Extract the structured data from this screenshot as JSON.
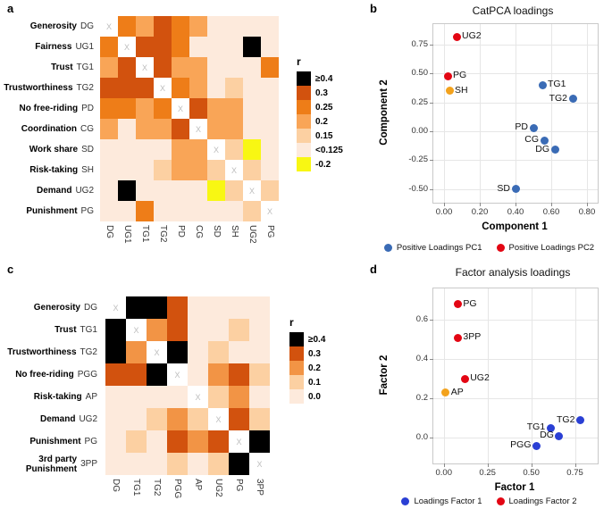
{
  "chart_data": [
    {
      "id": "a",
      "panel_label": "a",
      "type": "heatmap",
      "diagonal_marker": "X",
      "legend_title": "r",
      "row_titles": [
        "Generosity",
        "Fairness",
        "Trust",
        "Trustworthiness",
        "No free-riding",
        "Coordination",
        "Work share",
        "Risk-taking",
        "Demand",
        "Punishment"
      ],
      "categories": [
        "DG",
        "UG1",
        "TG1",
        "TG2",
        "PD",
        "CG",
        "SD",
        "SH",
        "UG2",
        "PG"
      ],
      "matrix": [
        [
          null,
          0.25,
          0.2,
          0.3,
          0.25,
          0.2,
          0.1,
          0.1,
          0.1,
          0.1
        ],
        [
          0.25,
          null,
          0.3,
          0.3,
          0.25,
          0.1,
          0.1,
          0.1,
          0.4,
          0.1
        ],
        [
          0.2,
          0.3,
          null,
          0.3,
          0.2,
          0.2,
          0.1,
          0.1,
          0.1,
          0.25
        ],
        [
          0.3,
          0.3,
          0.3,
          null,
          0.25,
          0.2,
          0.1,
          0.15,
          0.1,
          0.1
        ],
        [
          0.25,
          0.25,
          0.2,
          0.25,
          null,
          0.3,
          0.2,
          0.2,
          0.1,
          0.1
        ],
        [
          0.2,
          0.1,
          0.2,
          0.2,
          0.3,
          null,
          0.2,
          0.2,
          0.1,
          0.1
        ],
        [
          0.1,
          0.1,
          0.1,
          0.1,
          0.2,
          0.2,
          null,
          0.15,
          -0.2,
          0.1
        ],
        [
          0.1,
          0.1,
          0.1,
          0.15,
          0.2,
          0.2,
          0.15,
          null,
          0.15,
          0.1
        ],
        [
          0.1,
          0.4,
          0.1,
          0.1,
          0.1,
          0.1,
          -0.2,
          0.15,
          null,
          0.15
        ],
        [
          0.1,
          0.1,
          0.25,
          0.1,
          0.1,
          0.1,
          0.1,
          0.1,
          0.15,
          null
        ]
      ],
      "legend": [
        {
          "label": "≥0.4",
          "min": 0.4,
          "color": "#000000"
        },
        {
          "label": "0.3",
          "min": 0.3,
          "color": "#d2520e"
        },
        {
          "label": "0.25",
          "min": 0.25,
          "color": "#ee7d18"
        },
        {
          "label": "0.2",
          "min": 0.2,
          "color": "#f9a557"
        },
        {
          "label": "0.15",
          "min": 0.15,
          "color": "#fcd0a2"
        },
        {
          "label": "<0.125",
          "min": 0,
          "color": "#fdeadc"
        },
        {
          "label": "-0.2",
          "min": -1,
          "color": "#f8f713"
        }
      ]
    },
    {
      "id": "b",
      "panel_label": "b",
      "type": "scatter",
      "title": "CatPCA loadings",
      "xlabel": "Component 1",
      "ylabel": "Component 2",
      "xlim": [
        -0.06,
        0.86
      ],
      "ylim": [
        -0.62,
        0.93
      ],
      "grid": true,
      "xticks": [
        {
          "v": 0.0,
          "label": "0.00"
        },
        {
          "v": 0.2,
          "label": "0.20"
        },
        {
          "v": 0.4,
          "label": "0.40"
        },
        {
          "v": 0.6,
          "label": "0.60"
        },
        {
          "v": 0.8,
          "label": "0.80"
        }
      ],
      "yticks": [
        {
          "v": -0.5,
          "label": "-0.50"
        },
        {
          "v": -0.25,
          "label": "-0.25"
        },
        {
          "v": 0.0,
          "label": "0.00"
        },
        {
          "v": 0.25,
          "label": "0.25"
        },
        {
          "v": 0.5,
          "label": "0.50"
        },
        {
          "v": 0.75,
          "label": "0.75"
        }
      ],
      "colors": {
        "group1": "#3a6bb5",
        "group2": "#e30613",
        "other": "#f3a21c"
      },
      "points": [
        {
          "label": "UG2",
          "x": 0.07,
          "y": 0.82,
          "group": "group2",
          "anchor": "right"
        },
        {
          "label": "PG",
          "x": 0.02,
          "y": 0.48,
          "group": "group2",
          "anchor": "right"
        },
        {
          "label": "SH",
          "x": 0.03,
          "y": 0.35,
          "group": "other",
          "anchor": "right"
        },
        {
          "label": "TG1",
          "x": 0.55,
          "y": 0.4,
          "group": "group1",
          "anchor": "right"
        },
        {
          "label": "TG2",
          "x": 0.72,
          "y": 0.28,
          "group": "group1",
          "anchor": "left"
        },
        {
          "label": "PD",
          "x": 0.5,
          "y": 0.03,
          "group": "group1",
          "anchor": "left"
        },
        {
          "label": "CG",
          "x": 0.56,
          "y": -0.08,
          "group": "group1",
          "anchor": "left"
        },
        {
          "label": "DG",
          "x": 0.62,
          "y": -0.16,
          "group": "group1",
          "anchor": "left"
        },
        {
          "label": "SD",
          "x": 0.4,
          "y": -0.5,
          "group": "group1",
          "anchor": "left"
        }
      ],
      "legend": [
        {
          "label": "Positive Loadings PC1",
          "color": "#3a6bb5"
        },
        {
          "label": "Positive Loadings PC2",
          "color": "#e30613"
        }
      ]
    },
    {
      "id": "c",
      "panel_label": "c",
      "type": "heatmap",
      "diagonal_marker": "X",
      "legend_title": "r",
      "row_titles": [
        "Generosity",
        "Trust",
        "Trustworthiness",
        "No free-riding",
        "Risk-taking",
        "Demand",
        "Punishment",
        "3rd party Punishment"
      ],
      "categories": [
        "DG",
        "TG1",
        "TG2",
        "PGG",
        "AP",
        "UG2",
        "PG",
        "3PP"
      ],
      "matrix": [
        [
          null,
          0.4,
          0.4,
          0.3,
          0.05,
          0.05,
          0.05,
          0.05
        ],
        [
          0.4,
          null,
          0.2,
          0.3,
          0.05,
          0.05,
          0.1,
          0.05
        ],
        [
          0.4,
          0.2,
          null,
          0.4,
          0.05,
          0.1,
          0.05,
          0.05
        ],
        [
          0.3,
          0.3,
          0.4,
          null,
          0.05,
          0.2,
          0.3,
          0.1
        ],
        [
          0.05,
          0.05,
          0.05,
          0.05,
          null,
          0.1,
          0.2,
          0.05
        ],
        [
          0.05,
          0.05,
          0.1,
          0.2,
          0.1,
          null,
          0.3,
          0.1
        ],
        [
          0.05,
          0.1,
          0.05,
          0.3,
          0.2,
          0.3,
          null,
          0.4
        ],
        [
          0.05,
          0.05,
          0.05,
          0.1,
          0.05,
          0.1,
          0.4,
          null
        ]
      ],
      "legend": [
        {
          "label": "≥0.4",
          "min": 0.4,
          "color": "#000000"
        },
        {
          "label": "0.3",
          "min": 0.3,
          "color": "#d2520e"
        },
        {
          "label": "0.2",
          "min": 0.2,
          "color": "#f29445"
        },
        {
          "label": "0.1",
          "min": 0.1,
          "color": "#fcd0a2"
        },
        {
          "label": "0.0",
          "min": -1,
          "color": "#fdeadc"
        }
      ]
    },
    {
      "id": "d",
      "panel_label": "d",
      "type": "scatter",
      "title": "Factor analysis loadings",
      "xlabel": "Factor 1",
      "ylabel": "Factor 2",
      "xlim": [
        -0.06,
        0.88
      ],
      "ylim": [
        -0.13,
        0.76
      ],
      "grid": true,
      "xticks": [
        {
          "v": 0.0,
          "label": "0.00"
        },
        {
          "v": 0.25,
          "label": "0.25"
        },
        {
          "v": 0.5,
          "label": "0.50"
        },
        {
          "v": 0.75,
          "label": "0.75"
        }
      ],
      "yticks": [
        {
          "v": 0.0,
          "label": "0.0"
        },
        {
          "v": 0.2,
          "label": "0.2"
        },
        {
          "v": 0.4,
          "label": "0.4"
        },
        {
          "v": 0.6,
          "label": "0.6"
        }
      ],
      "colors": {
        "group1": "#2a3fd4",
        "group2": "#e30613",
        "other": "#f3a21c"
      },
      "points": [
        {
          "label": "PG",
          "x": 0.08,
          "y": 0.68,
          "group": "group2",
          "anchor": "right"
        },
        {
          "label": "3PP",
          "x": 0.08,
          "y": 0.51,
          "group": "group2",
          "anchor": "right"
        },
        {
          "label": "UG2",
          "x": 0.12,
          "y": 0.3,
          "group": "group2",
          "anchor": "right"
        },
        {
          "label": "AP",
          "x": 0.01,
          "y": 0.23,
          "group": "other",
          "anchor": "right"
        },
        {
          "label": "TG2",
          "x": 0.78,
          "y": 0.09,
          "group": "group1",
          "anchor": "left"
        },
        {
          "label": "TG1",
          "x": 0.61,
          "y": 0.05,
          "group": "group1",
          "anchor": "left"
        },
        {
          "label": "DG",
          "x": 0.66,
          "y": 0.01,
          "group": "group1",
          "anchor": "left"
        },
        {
          "label": "PGG",
          "x": 0.53,
          "y": -0.04,
          "group": "group1",
          "anchor": "left"
        }
      ],
      "legend": [
        {
          "label": "Loadings Factor 1",
          "color": "#2a3fd4"
        },
        {
          "label": "Loadings Factor 2",
          "color": "#e30613"
        }
      ]
    }
  ]
}
